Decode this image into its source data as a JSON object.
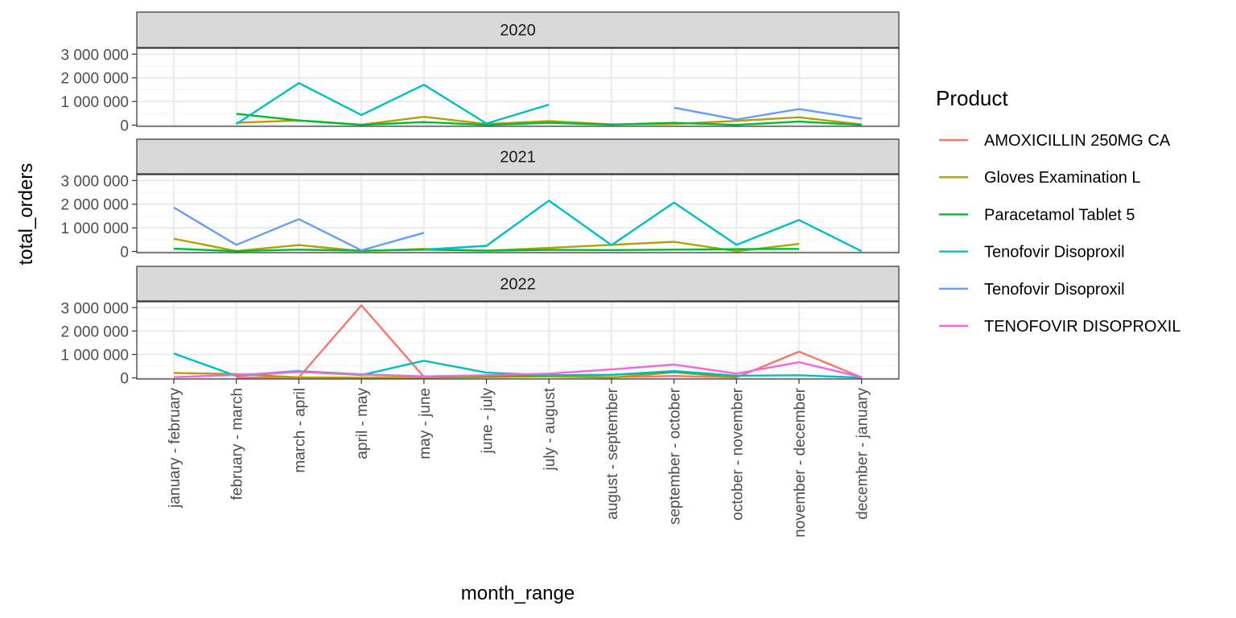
{
  "chart_data": {
    "type": "line",
    "xlabel": "month_range",
    "ylabel": "total_orders",
    "ylim": [
      -50000,
      3250000
    ],
    "yticks": [
      0,
      1000000,
      2000000,
      3000000
    ],
    "ytick_labels": [
      "0",
      "1 000 000",
      "2 000 000",
      "3 000 000"
    ],
    "grid": true,
    "legend_position": "right",
    "legend_title": "Product",
    "categories": [
      "january - february",
      "february - march",
      "march - april",
      "april - may",
      "may - june",
      "june - july",
      "july - august",
      "august - september",
      "september - october",
      "october - november",
      "november - december",
      "december - january"
    ],
    "series": [
      {
        "name": "AMOXICILLIN 250MG CA",
        "color": "#F8766D"
      },
      {
        "name": "Gloves Examination L",
        "color": "#B79F00"
      },
      {
        "name": "Paracetamol Tablet 5",
        "color": "#00BA38"
      },
      {
        "name": "Tenofovir Disoproxil",
        "color": "#00BFC4"
      },
      {
        "name": "Tenofovir Disoproxil",
        "color": "#619CFF"
      },
      {
        "name": "TENOFOVIR DISOPROXIL",
        "color": "#F564E3"
      }
    ],
    "panels": [
      {
        "label": "2020",
        "values": [
          [
            null,
            null,
            null,
            null,
            null,
            null,
            null,
            null,
            null,
            null,
            null,
            null
          ],
          [
            null,
            100000,
            200000,
            20000,
            350000,
            50000,
            170000,
            30000,
            50000,
            180000,
            330000,
            30000
          ],
          [
            null,
            480000,
            200000,
            10000,
            130000,
            10000,
            100000,
            20000,
            100000,
            10000,
            150000,
            10000
          ],
          [
            null,
            50000,
            1780000,
            430000,
            1710000,
            70000,
            870000,
            null,
            null,
            null,
            null,
            null
          ],
          [
            null,
            null,
            null,
            null,
            null,
            null,
            null,
            null,
            740000,
            240000,
            680000,
            270000
          ],
          [
            null,
            null,
            null,
            null,
            null,
            null,
            null,
            null,
            null,
            null,
            null,
            null
          ]
        ]
      },
      {
        "label": "2021",
        "values": [
          [
            null,
            null,
            null,
            null,
            null,
            null,
            null,
            null,
            null,
            null,
            null,
            null
          ],
          [
            540000,
            20000,
            270000,
            20000,
            110000,
            40000,
            150000,
            280000,
            410000,
            10000,
            320000,
            null
          ],
          [
            120000,
            10000,
            80000,
            30000,
            80000,
            30000,
            70000,
            60000,
            80000,
            100000,
            110000,
            null
          ],
          [
            null,
            null,
            null,
            null,
            80000,
            240000,
            2150000,
            270000,
            2070000,
            280000,
            1330000,
            10000
          ],
          [
            1860000,
            280000,
            1370000,
            50000,
            790000,
            null,
            null,
            null,
            null,
            null,
            null,
            null
          ],
          [
            null,
            null,
            null,
            null,
            null,
            null,
            null,
            null,
            null,
            null,
            null,
            null
          ]
        ]
      },
      {
        "label": "2022",
        "values": [
          [
            null,
            10000,
            20000,
            3100000,
            40000,
            60000,
            90000,
            30000,
            80000,
            20000,
            1120000,
            20000
          ],
          [
            210000,
            160000,
            20000,
            10000,
            10000,
            30000,
            60000,
            10000,
            240000,
            20000,
            null,
            null
          ],
          [
            null,
            null,
            280000,
            150000,
            60000,
            90000,
            110000,
            130000,
            260000,
            80000,
            null,
            null
          ],
          [
            1040000,
            80000,
            260000,
            120000,
            730000,
            220000,
            110000,
            130000,
            290000,
            90000,
            110000,
            10000
          ],
          [
            null,
            100000,
            300000,
            null,
            null,
            null,
            null,
            null,
            null,
            null,
            null,
            null
          ],
          [
            30000,
            130000,
            250000,
            140000,
            60000,
            110000,
            180000,
            360000,
            570000,
            180000,
            670000,
            30000
          ]
        ]
      }
    ]
  }
}
